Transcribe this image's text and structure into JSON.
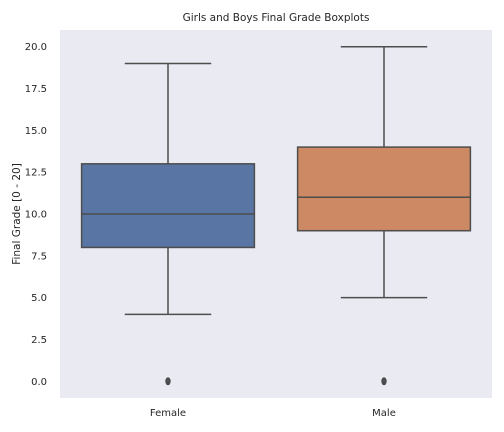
{
  "chart_data": {
    "type": "box",
    "title": "Girls and Boys Final Grade Boxplots",
    "xlabel": "",
    "ylabel": "Final Grade [0 - 20]",
    "ylim": [
      -1,
      21
    ],
    "y_ticks": [
      "0.0",
      "2.5",
      "5.0",
      "7.5",
      "10.0",
      "12.5",
      "15.0",
      "17.5",
      "20.0"
    ],
    "grid": false,
    "categories": [
      "Female",
      "Male"
    ],
    "boxes": [
      {
        "category": "Female",
        "whisker_low": 4,
        "q1": 8,
        "median": 10,
        "q3": 13,
        "whisker_high": 19,
        "outliers": [
          0
        ],
        "color": "#5975a4"
      },
      {
        "category": "Male",
        "whisker_low": 5,
        "q1": 9,
        "median": 11,
        "q3": 14,
        "whisker_high": 20,
        "outliers": [
          0
        ],
        "color": "#cc8963"
      }
    ],
    "colors": {
      "background": "#eaeaf2",
      "line": "#4d4d4d"
    }
  }
}
